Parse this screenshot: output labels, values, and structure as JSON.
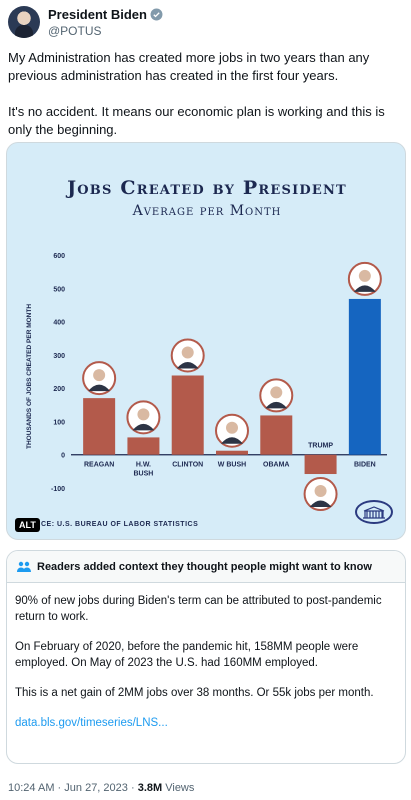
{
  "author": {
    "name": "President Biden",
    "handle": "@POTUS"
  },
  "tweet": {
    "paragraphs": [
      "My Administration has created more jobs in two years than any previous administration has created in the first four years.",
      "It's no accident. It means our economic plan is working and this is only the beginning."
    ]
  },
  "media": {
    "alt_label": "ALT",
    "source": "CE: U.S. BUREAU OF LABOR STATISTICS"
  },
  "chart_data": {
    "type": "bar",
    "title": "Jobs Created by President",
    "subtitle": "Average per Month",
    "ylabel": "Thousands of Jobs Created per Month",
    "xlabel": "",
    "ylim": [
      -100,
      600
    ],
    "yticks": [
      600,
      500,
      400,
      300,
      200,
      100,
      0,
      -100
    ],
    "categories": [
      "REAGAN",
      "H.W. BUSH",
      "CLINTON",
      "W BUSH",
      "OBAMA",
      "TRUMP",
      "BIDEN"
    ],
    "values": [
      170,
      52,
      238,
      12,
      118,
      -58,
      468
    ],
    "colors": {
      "default": "#b35a4b",
      "highlight": "#1565c0",
      "background": "#d6ecf8",
      "text": "#1c2850"
    },
    "grid": false,
    "legend": "none"
  },
  "community_notes": {
    "header": "Readers added context they thought people might want to know",
    "paragraphs": [
      "90% of new jobs during Biden's term can be attributed to post-pandemic return to work.",
      "On February of 2020, before the pandemic hit, 158MM people were employed. On May of 2023 the U.S. had 160MM employed.",
      "This is a net gain of 2MM jobs over 38 months. Or 55k jobs per month."
    ],
    "link": "data.bls.gov/timeseries/LNS..."
  },
  "meta": {
    "time": "10:24 AM",
    "date": "Jun 27, 2023",
    "views": "3.8M",
    "views_label": "Views"
  }
}
